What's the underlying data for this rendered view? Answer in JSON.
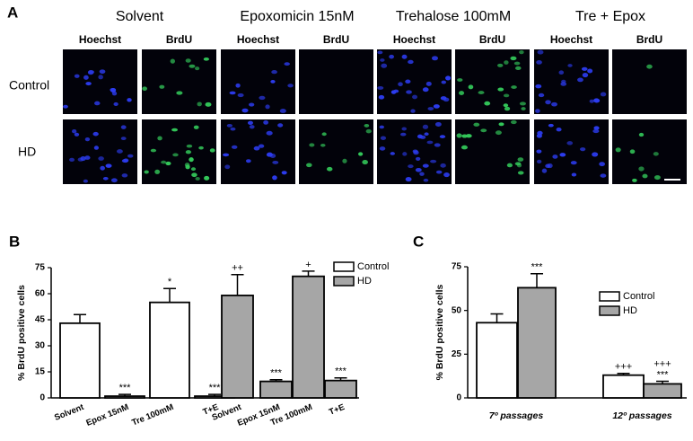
{
  "panel_a": {
    "label": "A",
    "groups": [
      "Solvent",
      "Epoxomicin 15nM",
      "Trehalose 100mM",
      "Tre + Epox"
    ],
    "channels": [
      "Hoechst",
      "BrdU"
    ],
    "rows": [
      "Control",
      "HD"
    ]
  },
  "chart_data": [
    {
      "type": "bar",
      "panel": "B",
      "ylabel": "% BrdU positive cells",
      "categories": [
        "Solvent",
        "Epox 15nM",
        "Tre 100mM",
        "T+E"
      ],
      "ylim": [
        0,
        75
      ],
      "yticks": [
        0,
        15,
        30,
        45,
        60,
        75
      ],
      "legend": "upper right",
      "series": [
        {
          "name": "Control",
          "color": "#ffffff",
          "values": [
            43,
            1,
            55,
            1
          ],
          "errors": [
            5,
            1,
            8,
            1
          ],
          "annotations": [
            null,
            [
              "***"
            ],
            [
              "*"
            ],
            [
              "***"
            ]
          ]
        },
        {
          "name": "HD",
          "color": "#a6a6a6",
          "values": [
            59,
            9.5,
            70,
            10
          ],
          "errors": [
            12,
            1,
            3,
            1.5
          ],
          "annotations": [
            [
              "++"
            ],
            [
              "***"
            ],
            [
              "+"
            ],
            [
              "***"
            ]
          ]
        }
      ]
    },
    {
      "type": "bar",
      "panel": "C",
      "ylabel": "% BrdU positive cells",
      "categories": [
        "7º passages",
        "12º passages"
      ],
      "ylim": [
        0,
        75
      ],
      "yticks": [
        0,
        25,
        50,
        75
      ],
      "legend": "upper right",
      "series": [
        {
          "name": "Control",
          "color": "#ffffff",
          "values": [
            43,
            13
          ],
          "errors": [
            5,
            1
          ],
          "annotations": [
            null,
            [
              "+++"
            ]
          ]
        },
        {
          "name": "HD",
          "color": "#a6a6a6",
          "values": [
            63,
            8
          ],
          "errors": [
            8,
            1.5
          ],
          "annotations": [
            [
              "***"
            ],
            [
              "+++",
              "***"
            ]
          ]
        }
      ]
    }
  ]
}
